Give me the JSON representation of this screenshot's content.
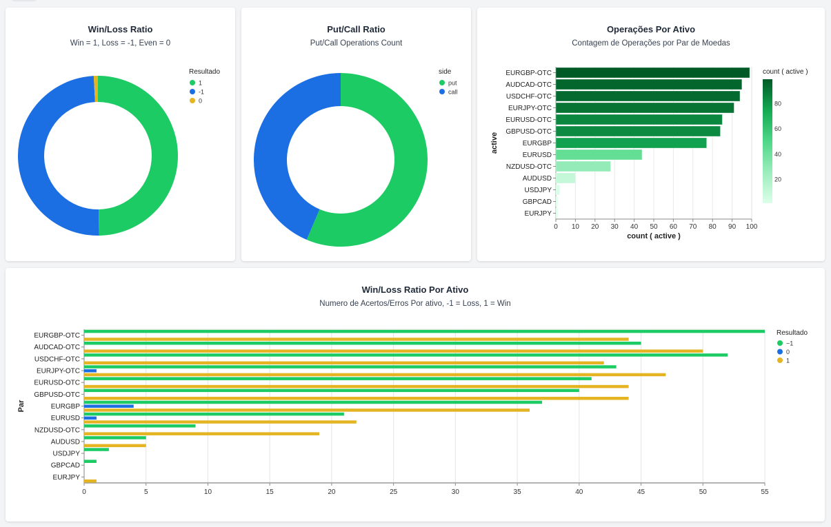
{
  "colors": {
    "green": "#1ccb64",
    "blue": "#1c6ee3",
    "yellow": "#e4b423",
    "grid": "#e8e8e8",
    "axis": "#888888"
  },
  "chart_data": [
    {
      "id": "winloss",
      "type": "pie",
      "donut": true,
      "title": "Win/Loss Ratio",
      "subtitle": "Win = 1, Loss = -1, Even = 0",
      "legend_title": "Resultado",
      "legend_position": "top-right",
      "slices": [
        {
          "label": "1",
          "value": 354,
          "color": "#1ccb64"
        },
        {
          "label": "-1",
          "value": 351,
          "color": "#1c6ee3"
        },
        {
          "label": "0",
          "value": 6,
          "color": "#e4b423"
        }
      ]
    },
    {
      "id": "putcall",
      "type": "pie",
      "donut": true,
      "title": "Put/Call Ratio",
      "subtitle": "Put/Call Operations Count",
      "legend_title": "side",
      "legend_position": "top-right",
      "slices": [
        {
          "label": "put",
          "value": 401,
          "color": "#1ccb64"
        },
        {
          "label": "call",
          "value": 310,
          "color": "#1c6ee3"
        }
      ]
    },
    {
      "id": "operacoes",
      "type": "bar",
      "orientation": "horizontal",
      "title": "Operações Por Ativo",
      "subtitle": "Contagem de Operações por Par de Moedas",
      "xlabel": "count ( active )",
      "ylabel": "active",
      "xlim": [
        0,
        100
      ],
      "xticks": [
        0,
        10,
        20,
        30,
        40,
        50,
        60,
        70,
        80,
        90,
        100
      ],
      "grid": true,
      "categories": [
        "EURGBP-OTC",
        "AUDCAD-OTC",
        "USDCHF-OTC",
        "EURJPY-OTC",
        "EURUSD-OTC",
        "GBPUSD-OTC",
        "EURGBP",
        "EURUSD",
        "NZDUSD-OTC",
        "AUDUSD",
        "USDJPY",
        "GBPCAD",
        "EURJPY"
      ],
      "values": [
        99,
        95,
        94,
        91,
        85,
        84,
        77,
        44,
        28,
        10,
        2,
        1,
        1
      ],
      "color_legend": {
        "title": "count ( active )",
        "ticks": [
          20,
          40,
          60,
          80
        ],
        "domain": [
          1,
          99
        ],
        "position": "right"
      }
    },
    {
      "id": "winloss_por_ativo",
      "type": "bar",
      "orientation": "horizontal",
      "grouped": true,
      "title": "Win/Loss Ratio Por Ativo",
      "subtitle": "Numero de Acertos/Erros Por ativo, -1 = Loss, 1 = Win",
      "xlabel": "",
      "ylabel": "Par",
      "xlim": [
        0,
        55
      ],
      "xticks": [
        0,
        5,
        10,
        15,
        20,
        25,
        30,
        35,
        40,
        45,
        50,
        55
      ],
      "grid": true,
      "legend_title": "Resultado",
      "legend_position": "top-right",
      "categories": [
        "EURGBP-OTC",
        "AUDCAD-OTC",
        "USDCHF-OTC",
        "EURJPY-OTC",
        "EURUSD-OTC",
        "GBPUSD-OTC",
        "EURGBP",
        "EURUSD",
        "NZDUSD-OTC",
        "AUDUSD",
        "USDJPY",
        "GBPCAD",
        "EURJPY"
      ],
      "series": [
        {
          "name": "−1",
          "color": "#1ccb64",
          "values": [
            55,
            45,
            52,
            43,
            41,
            40,
            37,
            21,
            9,
            5,
            2,
            1,
            0
          ]
        },
        {
          "name": "0",
          "color": "#1c6ee3",
          "values": [
            0,
            0,
            0,
            1,
            0,
            0,
            4,
            1,
            0,
            0,
            0,
            0,
            0
          ]
        },
        {
          "name": "1",
          "color": "#e4b423",
          "values": [
            44,
            50,
            42,
            47,
            44,
            44,
            36,
            22,
            19,
            5,
            0,
            0,
            1
          ]
        }
      ]
    }
  ]
}
